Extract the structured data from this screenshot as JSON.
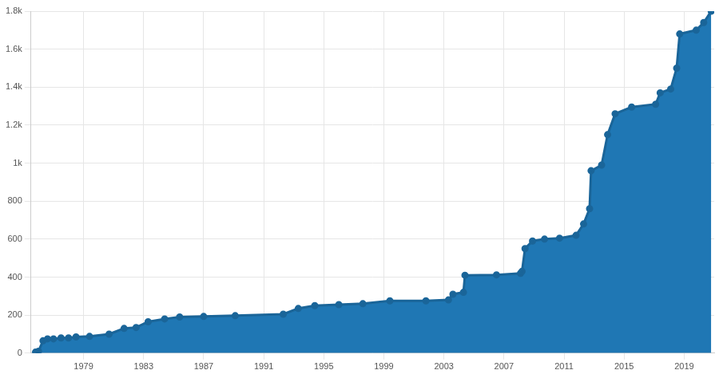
{
  "chart_data": {
    "type": "area",
    "x": [
      1975.8,
      1976.0,
      1976.3,
      1976.6,
      1977.0,
      1977.5,
      1978.0,
      1978.5,
      1979.4,
      1980.7,
      1981.7,
      1982.5,
      1983.3,
      1984.4,
      1985.4,
      1987.0,
      1989.1,
      1992.3,
      1993.3,
      1994.4,
      1996.0,
      1997.6,
      1999.4,
      2001.8,
      2003.3,
      2003.6,
      2004.3,
      2004.4,
      2006.5,
      2008.1,
      2008.2,
      2008.4,
      2008.9,
      2009.7,
      2010.7,
      2011.8,
      2012.3,
      2012.7,
      2012.8,
      2013.5,
      2013.9,
      2014.4,
      2015.5,
      2017.1,
      2017.4,
      2018.1,
      2018.5,
      2018.7,
      2019.8,
      2020.3,
      2020.8
    ],
    "values": [
      5,
      10,
      65,
      75,
      75,
      80,
      80,
      85,
      88,
      100,
      130,
      135,
      165,
      180,
      190,
      193,
      197,
      205,
      235,
      250,
      255,
      260,
      275,
      275,
      280,
      310,
      320,
      410,
      412,
      420,
      430,
      550,
      590,
      600,
      605,
      620,
      680,
      760,
      960,
      990,
      1150,
      1260,
      1295,
      1310,
      1370,
      1390,
      1500,
      1680,
      1700,
      1740,
      1800
    ],
    "color": "#1f77b4",
    "marker": "circle",
    "line_style": "solid",
    "xlim": [
      1975.5,
      2021
    ],
    "xticks": [
      1979,
      1983,
      1987,
      1991,
      1995,
      1999,
      2003,
      2007,
      2011,
      2015,
      2019
    ],
    "ylim": [
      0,
      1800
    ],
    "yticks": [
      0,
      200,
      400,
      600,
      800,
      {
        "value": 1000,
        "label": "1k"
      },
      {
        "value": 1200,
        "label": "1.2k"
      },
      {
        "value": 1400,
        "label": "1.4k"
      },
      {
        "value": 1600,
        "label": "1.6k"
      },
      {
        "value": 1800,
        "label": "1.8k"
      }
    ],
    "grid": true
  }
}
